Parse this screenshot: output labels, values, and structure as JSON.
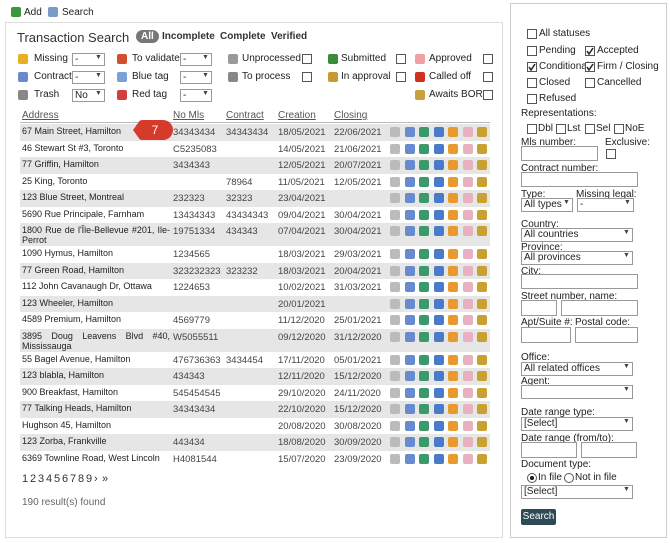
{
  "toolbar": [
    "Add",
    "Search"
  ],
  "title": "Transaction Search",
  "status_tabs": [
    "All",
    "Incomplete",
    "Complete",
    "Verified"
  ],
  "filters": [
    [
      {
        "label": "Missing",
        "select": "-"
      },
      {
        "label": "To validate",
        "select": "-"
      },
      {
        "label": "Unprocessed",
        "checked": false
      },
      {
        "label": "Submitted",
        "checked": false
      },
      {
        "label": "Approved",
        "checked": false
      }
    ],
    [
      {
        "label": "Contract",
        "select": "-"
      },
      {
        "label": "Blue tag",
        "select": "-"
      },
      {
        "label": "To process",
        "checked": false
      },
      {
        "label": "In approval",
        "checked": false
      },
      {
        "label": "Called off",
        "checked": false
      }
    ],
    [
      {
        "label": "Trash",
        "select": "No"
      },
      {
        "label": "Red tag",
        "select": "-"
      },
      null,
      null,
      {
        "label": "Awaits BOR",
        "checked": false
      }
    ]
  ],
  "table": {
    "headers": [
      "Address",
      "No Mls",
      "Contract",
      "Creation",
      "Closing"
    ],
    "rows": [
      [
        "67 Main Street, Hamilton",
        "34343434",
        "34343434",
        "18/05/2021",
        "22/06/2021"
      ],
      [
        "46 Stewart St #3, Toronto",
        "C5235083",
        null,
        "14/05/2021",
        "21/06/2021"
      ],
      [
        "77 Griffin, Hamilton",
        "3434343",
        null,
        "12/05/2021",
        "20/07/2021"
      ],
      [
        "25 King, Toronto",
        null,
        "78964",
        "11/05/2021",
        "12/05/2021"
      ],
      [
        "123 Blue Street, Montreal",
        "232323",
        "32323",
        "23/04/2021",
        null
      ],
      [
        "5690 Rue Principale, Farnham",
        "13434343",
        "43434343",
        "09/04/2021",
        "30/04/2021"
      ],
      [
        "1800 Rue de l'Île-Bellevue #201, Ile-Perrot",
        "19751334",
        "434343",
        "07/04/2021",
        "30/04/2021"
      ],
      [
        "1090 Hymus, Hamilton",
        "1234565",
        null,
        "18/03/2021",
        "29/03/2021"
      ],
      [
        "77 Green Road, Hamilton",
        "323232323",
        "323232",
        "18/03/2021",
        "20/04/2021"
      ],
      [
        "112 John Cavanaugh Dr, Ottawa",
        "1224653",
        null,
        "10/02/2021",
        "31/03/2021"
      ],
      [
        "123 Wheeler, Hamilton",
        null,
        null,
        "20/01/2021",
        null
      ],
      [
        "4589 Premium, Hamilton",
        "4569779",
        null,
        "11/12/2020",
        "25/01/2021"
      ],
      [
        "3895 Doug Leavens Blvd #40, Mississauga",
        "W5055511",
        null,
        "09/12/2020",
        "31/12/2020"
      ],
      [
        "55 Bagel Avenue, Hamilton",
        "476736363",
        "3434454",
        "17/11/2020",
        "05/01/2021"
      ],
      [
        "123 blabla, Hamilton",
        "434343",
        null,
        "12/11/2020",
        "15/12/2020"
      ],
      [
        "900 Breakfast, Hamilton",
        "545454545",
        null,
        "29/10/2020",
        "24/11/2020"
      ],
      [
        "77 Talking Heads, Hamilton",
        "34343434",
        null,
        "22/10/2020",
        "15/12/2020"
      ],
      [
        "Hughson 45, Hamilton",
        null,
        null,
        "20/08/2020",
        "30/08/2020"
      ],
      [
        "123 Zorba, Frankville",
        "443434",
        null,
        "18/08/2020",
        "30/09/2020"
      ],
      [
        "6369 Townline Road, West Lincoln",
        "H4081544",
        null,
        "15/07/2020",
        "23/09/2020"
      ]
    ]
  },
  "badge": "7",
  "pagination": [
    "1",
    "2",
    "3",
    "4",
    "5",
    "6",
    "7",
    "8",
    "9",
    "›",
    "»"
  ],
  "result_count": "190 result(s) found",
  "sidebar": {
    "statuses": [
      {
        "label": "All statuses",
        "checked": false
      },
      {
        "label": "Pending",
        "checked": false
      },
      {
        "label": "Accepted",
        "checked": true
      },
      {
        "label": "Conditional",
        "checked": true
      },
      {
        "label": "Firm / Closing",
        "checked": true
      },
      {
        "label": "Closed",
        "checked": false
      },
      {
        "label": "Cancelled",
        "checked": false
      },
      {
        "label": "Refused",
        "checked": false
      }
    ],
    "representations_label": "Representations:",
    "representations": [
      "Dbl",
      "Lst",
      "Sel",
      "NoE"
    ],
    "mls_label": "Mls number:",
    "exclusive_label": "Exclusive:",
    "contract_label": "Contract number:",
    "type_label": "Type:",
    "type_value": "All types",
    "missing_legal_label": "Missing legal:",
    "missing_legal_value": "-",
    "country_label": "Country:",
    "country_value": "All countries",
    "province_label": "Province:",
    "province_value": "All provinces",
    "city_label": "City:",
    "street_label": "Street number, name:",
    "apt_label": "Apt/Suite #:",
    "postal_label": "Postal code:",
    "office_label": "Office:",
    "office_value": "All related offices",
    "agent_label": "Agent:",
    "date_type_label": "Date range type:",
    "date_type_value": "[Select]",
    "date_range_label": "Date range (from/to):",
    "doc_type_label": "Document type:",
    "doc_options": [
      {
        "label": "In file",
        "checked": true
      },
      {
        "label": "Not in file",
        "checked": false
      }
    ],
    "doc_value": "[Select]",
    "search_button": "Search"
  }
}
